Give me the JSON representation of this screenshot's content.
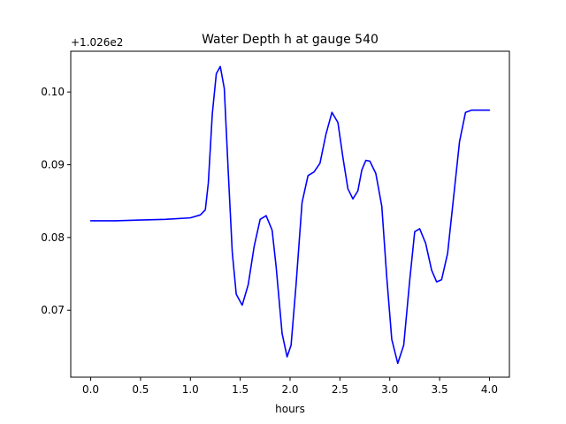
{
  "chart_data": {
    "type": "line",
    "title": "Water Depth h at gauge 540",
    "xlabel": "hours",
    "ylabel": "",
    "offset_label": "+1.026e2",
    "xlim": [
      -0.2,
      4.2
    ],
    "ylim": [
      0.0608,
      0.1056
    ],
    "xticks": [
      0.0,
      0.5,
      1.0,
      1.5,
      2.0,
      2.5,
      3.0,
      3.5,
      4.0
    ],
    "xtick_labels": [
      "0.0",
      "0.5",
      "1.0",
      "1.5",
      "2.0",
      "2.5",
      "3.0",
      "3.5",
      "4.0"
    ],
    "yticks": [
      0.07,
      0.08,
      0.09,
      0.1
    ],
    "ytick_labels": [
      "0.07",
      "0.08",
      "0.09",
      "0.10"
    ],
    "grid": false,
    "series": [
      {
        "color": "#0000ff",
        "x": [
          0.0,
          0.25,
          0.5,
          0.75,
          1.0,
          1.1,
          1.15,
          1.18,
          1.22,
          1.26,
          1.3,
          1.34,
          1.38,
          1.42,
          1.46,
          1.52,
          1.58,
          1.64,
          1.7,
          1.76,
          1.82,
          1.86,
          1.92,
          1.97,
          2.01,
          2.06,
          2.12,
          2.18,
          2.24,
          2.3,
          2.36,
          2.42,
          2.48,
          2.53,
          2.58,
          2.63,
          2.68,
          2.72,
          2.76,
          2.8,
          2.86,
          2.92,
          2.97,
          3.02,
          3.08,
          3.14,
          3.2,
          3.25,
          3.3,
          3.36,
          3.42,
          3.47,
          3.52,
          3.58,
          3.64,
          3.7,
          3.76,
          3.82,
          3.88,
          3.94,
          4.0
        ],
        "y": [
          0.0823,
          0.0823,
          0.0824,
          0.0825,
          0.0827,
          0.0831,
          0.0838,
          0.0875,
          0.097,
          0.1025,
          0.1035,
          0.1005,
          0.089,
          0.078,
          0.0722,
          0.0707,
          0.0735,
          0.0788,
          0.0825,
          0.083,
          0.081,
          0.076,
          0.0668,
          0.0636,
          0.0652,
          0.0735,
          0.0848,
          0.0885,
          0.089,
          0.0902,
          0.0942,
          0.0972,
          0.0958,
          0.091,
          0.0867,
          0.0853,
          0.0864,
          0.0893,
          0.0906,
          0.0905,
          0.0888,
          0.0843,
          0.0745,
          0.066,
          0.0627,
          0.0652,
          0.0741,
          0.0808,
          0.0812,
          0.0792,
          0.0755,
          0.0739,
          0.0742,
          0.0778,
          0.0855,
          0.0932,
          0.0972,
          0.0975,
          0.0975,
          0.0975,
          0.0975
        ]
      }
    ]
  }
}
